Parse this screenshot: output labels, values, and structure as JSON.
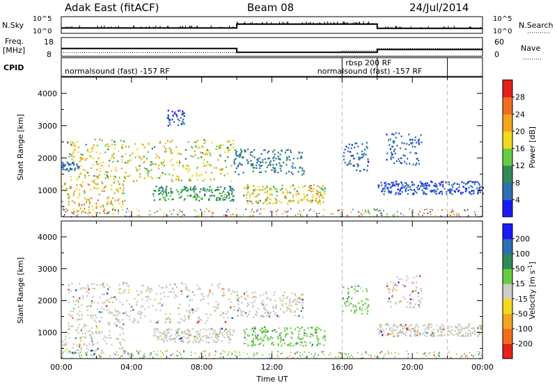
{
  "header": {
    "title_left": "Adak East (fitACF)",
    "title_center": "Beam 08",
    "title_right": "24/Jul/2014"
  },
  "side_labels": {
    "nsky": "N.Sky",
    "freq_line1": "Freq.",
    "freq_line2": "[MHz]",
    "cpid": "CPID",
    "nsearch": "N.Search",
    "nave": "Nave"
  },
  "top_ticks": {
    "nsky_left": [
      "10^5",
      "10^0"
    ],
    "nsearch_right": [
      "10^5",
      "10^0"
    ],
    "freq_left": [
      "18",
      "8"
    ],
    "nave_right": [
      "60",
      "0"
    ]
  },
  "cpid_labels": [
    {
      "text": "normalsound (fast) -157 RF",
      "start": "00:00"
    },
    {
      "text": "rbsp 200 RF",
      "start": "16:00"
    },
    {
      "text": "normalsound (fast) -157 RF",
      "start": "18:00"
    }
  ],
  "colors": {
    "power": [
      "#1a1aff",
      "#2d6eb5",
      "#2e8b57",
      "#66cc44",
      "#f2d91f",
      "#f2a51f",
      "#f26d1f",
      "#e6201a"
    ],
    "velocity": [
      "#e6201a",
      "#f26d1f",
      "#f2a51f",
      "#f2d91f",
      "#cfcfc8",
      "#66cc44",
      "#2e8b57",
      "#2d6eb5",
      "#1a1aff"
    ],
    "grey_scatter": "#c8c8c0"
  },
  "chart_data": [
    {
      "type": "line",
      "name": "nsky-nsearch",
      "x": [
        "00:00",
        "10:00",
        "18:00",
        "24:00"
      ],
      "series": [
        {
          "name": "N.Sky",
          "values": [
            1.6,
            2.8,
            1.5,
            1.5
          ]
        },
        {
          "name": "N.Search",
          "values": [
            1.5,
            2.6,
            1.4,
            1.4
          ]
        }
      ],
      "ylim": [
        0,
        5
      ],
      "log_scale": true
    },
    {
      "type": "line",
      "name": "freq-nave",
      "x": [
        "00:00",
        "10:00",
        "16:00",
        "18:00",
        "24:00"
      ],
      "series": [
        {
          "name": "Freq.",
          "values": [
            12.2,
            10.1,
            10.1,
            11.6,
            11.6
          ]
        },
        {
          "name": "Nave",
          "values": [
            12,
            12,
            17,
            25,
            25
          ]
        }
      ]
    },
    {
      "type": "heatmap",
      "name": "power",
      "title": "",
      "xlabel": "Time UT",
      "ylabel": "Slant Range [km]",
      "xlim": [
        0,
        24
      ],
      "ylim": [
        180,
        4500
      ],
      "x_ticks": [
        "00:00",
        "04:00",
        "08:00",
        "12:00",
        "16:00",
        "20:00",
        "00:00"
      ],
      "y_ticks": [
        "1000",
        "2000",
        "3000",
        "4000"
      ],
      "colorbar": {
        "label": "Power [dB]",
        "ticks": [
          "4",
          "8",
          "12",
          "16",
          "20",
          "24",
          "28"
        ],
        "range": [
          0,
          30
        ]
      },
      "features": [
        {
          "t_start": 0.0,
          "t_end": 3.6,
          "range_min": 300,
          "range_max": 1300,
          "peak_db": 28
        },
        {
          "t_start": 0.0,
          "t_end": 1.0,
          "range_min": 1650,
          "range_max": 1900,
          "peak_db": 8
        },
        {
          "t_start": 0.3,
          "t_end": 9.8,
          "range_min": 1300,
          "range_max": 2600,
          "peak_db": 24
        },
        {
          "t_start": 5.2,
          "t_end": 9.8,
          "range_min": 700,
          "range_max": 1150,
          "peak_db": 14
        },
        {
          "t_start": 9.8,
          "t_end": 13.8,
          "range_min": 1500,
          "range_max": 2300,
          "peak_db": 10
        },
        {
          "t_start": 10.3,
          "t_end": 15.0,
          "range_min": 600,
          "range_max": 1200,
          "peak_db": 24
        },
        {
          "t_start": 6.0,
          "t_end": 7.0,
          "range_min": 3000,
          "range_max": 3500,
          "peak_db": 6
        },
        {
          "t_start": 16.0,
          "t_end": 17.5,
          "range_min": 1600,
          "range_max": 2500,
          "peak_db": 8
        },
        {
          "t_start": 18.5,
          "t_end": 20.5,
          "range_min": 1800,
          "range_max": 2800,
          "peak_db": 8
        },
        {
          "t_start": 18.0,
          "t_end": 24.0,
          "range_min": 900,
          "range_max": 1300,
          "peak_db": 6
        }
      ],
      "markers": [
        "16:00",
        "22:00"
      ]
    },
    {
      "type": "heatmap",
      "name": "velocity",
      "title": "",
      "xlabel": "Time UT",
      "ylabel": "Slant Range [km]",
      "xlim": [
        0,
        24
      ],
      "ylim": [
        180,
        4500
      ],
      "x_ticks": [
        "00:00",
        "04:00",
        "08:00",
        "12:00",
        "16:00",
        "20:00",
        "00:00"
      ],
      "y_ticks": [
        "1000",
        "2000",
        "3000",
        "4000"
      ],
      "colorbar": {
        "label": "Velocity",
        "ticks": [
          "200",
          "100",
          "50",
          "15",
          "-15",
          "-50",
          "-100",
          "-200"
        ],
        "range": [
          -250,
          250
        ]
      },
      "features": [
        {
          "t_start": 0.0,
          "t_end": 3.6,
          "range_min": 300,
          "range_max": 1300,
          "v_ms": 0
        },
        {
          "t_start": 0.3,
          "t_end": 9.8,
          "range_min": 1300,
          "range_max": 2600,
          "v_ms": 0
        },
        {
          "t_start": 5.2,
          "t_end": 9.8,
          "range_min": 700,
          "range_max": 1150,
          "v_ms": 0
        },
        {
          "t_start": 9.8,
          "t_end": 13.8,
          "range_min": 1500,
          "range_max": 2300,
          "v_ms": 0
        },
        {
          "t_start": 10.3,
          "t_end": 15.0,
          "range_min": 600,
          "range_max": 1200,
          "v_ms": 60
        },
        {
          "t_start": 16.0,
          "t_end": 17.5,
          "range_min": 1600,
          "range_max": 2500,
          "v_ms": 30
        },
        {
          "t_start": 18.5,
          "t_end": 20.5,
          "range_min": 1800,
          "range_max": 2800,
          "v_ms": 0
        },
        {
          "t_start": 18.0,
          "t_end": 24.0,
          "range_min": 900,
          "range_max": 1300,
          "v_ms": 0
        }
      ],
      "markers": [
        "16:00",
        "22:00"
      ]
    }
  ]
}
